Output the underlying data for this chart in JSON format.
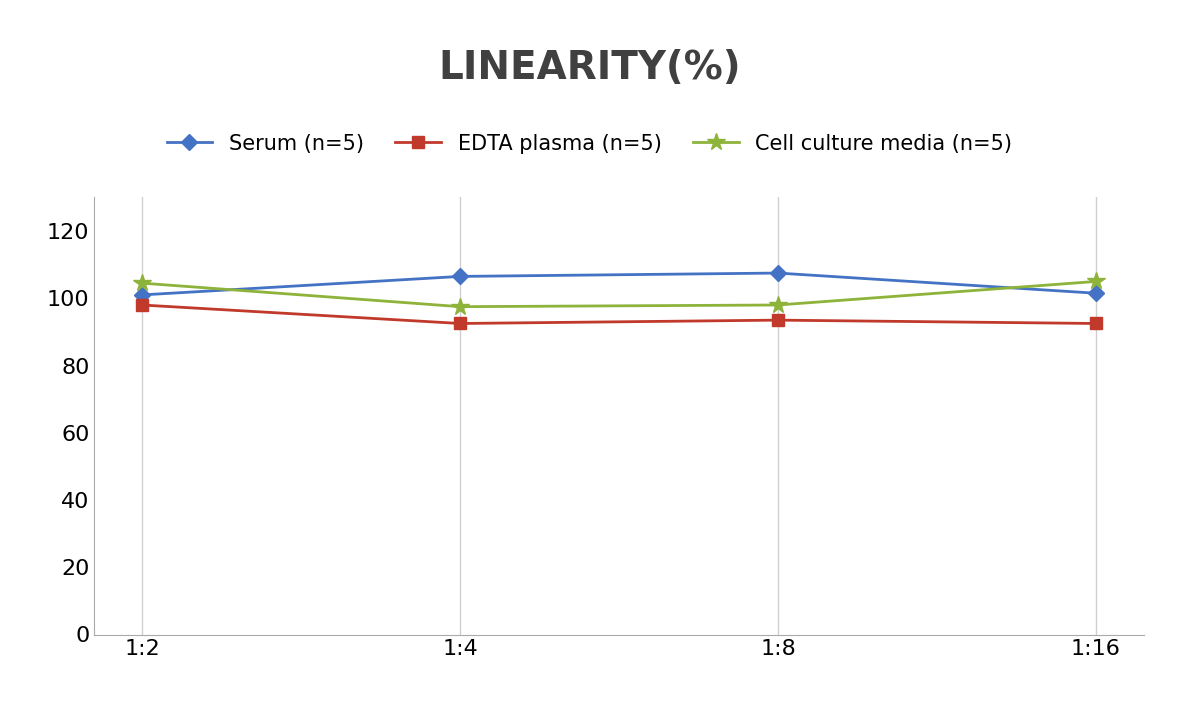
{
  "title": "LINEARITY(%)",
  "x_labels": [
    "1:2",
    "1:4",
    "1:8",
    "1:16"
  ],
  "x_positions": [
    0,
    1,
    2,
    3
  ],
  "series": [
    {
      "label": "Serum (n=5)",
      "values": [
        101,
        106.5,
        107.5,
        101.5
      ],
      "color": "#4472C4",
      "marker": "D",
      "marker_size": 8,
      "linewidth": 2
    },
    {
      "label": "EDTA plasma (n=5)",
      "values": [
        98,
        92.5,
        93.5,
        92.5
      ],
      "color": "#C0392B",
      "marker": "s",
      "marker_size": 8,
      "linewidth": 2
    },
    {
      "label": "Cell culture media (n=5)",
      "values": [
        104.5,
        97.5,
        98,
        105
      ],
      "color": "#8DB33A",
      "marker": "*",
      "marker_size": 13,
      "linewidth": 2
    }
  ],
  "ylim": [
    0,
    130
  ],
  "yticks": [
    0,
    20,
    40,
    60,
    80,
    100,
    120
  ],
  "background_color": "#FFFFFF",
  "grid_color": "#D0D0D0",
  "title_fontsize": 28,
  "tick_fontsize": 16,
  "legend_fontsize": 15,
  "title_color": "#404040"
}
